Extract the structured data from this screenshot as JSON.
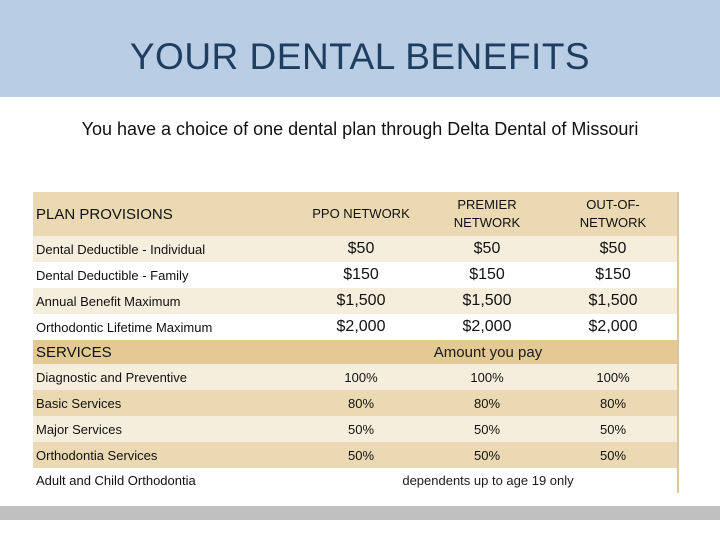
{
  "header": {
    "title": "YOUR DENTAL BENEFITS"
  },
  "subtitle": "You have a choice of one dental plan through Delta Dental of Missouri",
  "table": {
    "provisions_header": "PLAN PROVISIONS",
    "columns": [
      "PPO NETWORK",
      "PREMIER NETWORK",
      "OUT-OF-NETWORK"
    ],
    "provisions": [
      {
        "label": "Dental Deductible - Individual",
        "values": [
          "$50",
          "$50",
          "$50"
        ]
      },
      {
        "label": "Dental Deductible - Family",
        "values": [
          "$150",
          "$150",
          "$150"
        ]
      },
      {
        "label": "Annual Benefit Maximum",
        "values": [
          "$1,500",
          "$1,500",
          "$1,500"
        ]
      },
      {
        "label": "Orthodontic Lifetime Maximum",
        "values": [
          "$2,000",
          "$2,000",
          "$2,000"
        ]
      }
    ],
    "services_header": "SERVICES",
    "amount_header": "Amount you pay",
    "services": [
      {
        "label": "Diagnostic and Preventive",
        "values": [
          "100%",
          "100%",
          "100%"
        ]
      },
      {
        "label": "Basic Services",
        "values": [
          "80%",
          "80%",
          "80%"
        ]
      },
      {
        "label": "Major Services",
        "values": [
          "50%",
          "50%",
          "50%"
        ]
      },
      {
        "label": "Orthodontia Services",
        "values": [
          "50%",
          "50%",
          "50%"
        ]
      }
    ],
    "ortho_note": {
      "label": "Adult and Child Orthodontia",
      "value": "dependents up to age 19 only"
    }
  },
  "colors": {
    "header_bg": "#b9cde5",
    "title_color": "#1f3e5f",
    "row_tan": "#ead9b2",
    "row_cream": "#f6eedc",
    "row_gold": "#e3c994"
  }
}
